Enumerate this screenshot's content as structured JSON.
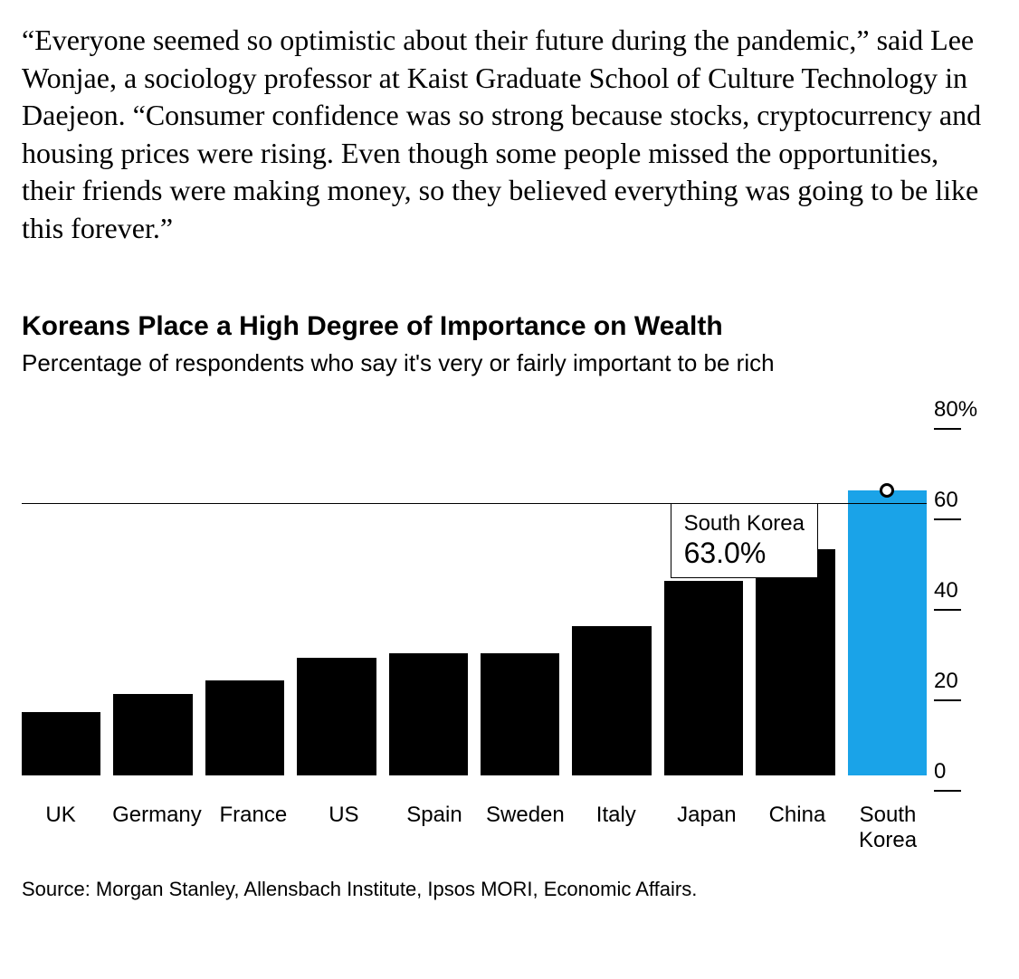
{
  "article": {
    "paragraph": "“Everyone seemed so optimistic about their future during the pandemic,” said Lee Wonjae, a sociology professor at Kaist Graduate School of Culture Technology in Daejeon. “Consumer confidence was so strong because stocks, cryptocurrency and housing prices were rising. Even though some people missed the opportunities, their friends were making money, so they believed everything was going to be like this forever.”"
  },
  "chart": {
    "type": "bar",
    "title": "Koreans Place a High Degree of Importance on Wealth",
    "subtitle": "Percentage of respondents who say it's very or fairly important to be rich",
    "categories": [
      "UK",
      "Germany",
      "France",
      "US",
      "Spain",
      "Sweden",
      "Italy",
      "Japan",
      "China",
      "South Korea"
    ],
    "values": [
      14,
      18,
      21,
      26,
      27,
      27,
      33,
      43,
      50,
      63
    ],
    "highlight_index": 9,
    "bar_color": "#000000",
    "highlight_color": "#1aa3e8",
    "ymax": 80,
    "ymin": 0,
    "ytick_step": 20,
    "y_unit": "%",
    "reference_line_value": 60,
    "axis_fontsize": 24,
    "title_fontsize": 30,
    "subtitle_fontsize": 26,
    "background_color": "#ffffff",
    "tooltip": {
      "label": "South Korea",
      "value": "63.0%",
      "attach_index": 9
    },
    "source": "Source: Morgan Stanley, Allensbach Institute, Ipsos MORI, Economic Affairs."
  }
}
